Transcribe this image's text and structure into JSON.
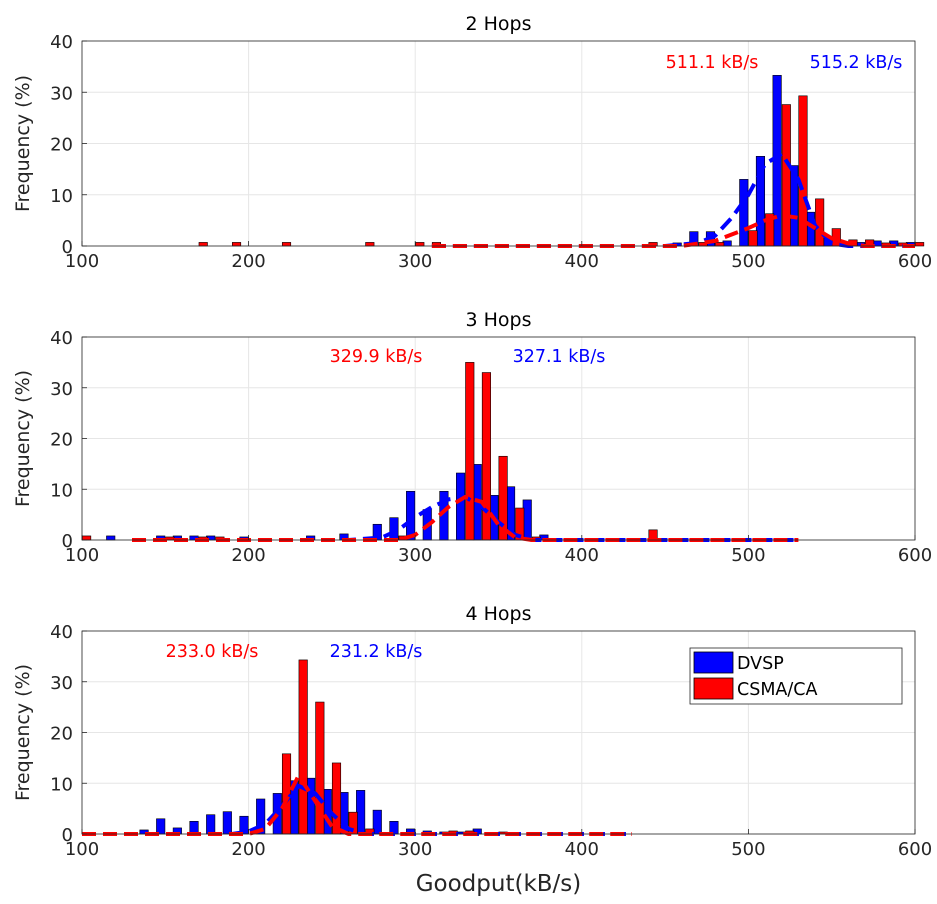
{
  "chart_data": [
    {
      "type": "bar",
      "title": "2 Hops",
      "xlabel": "",
      "ylabel": "Frequency (%)",
      "xlim": [
        100,
        600
      ],
      "ylim": [
        0,
        40
      ],
      "xticks": [
        100,
        200,
        300,
        400,
        500,
        600
      ],
      "yticks": [
        0,
        10,
        20,
        30,
        40
      ],
      "grid": true,
      "series": [
        {
          "color": "#0000ff",
          "bins": [
            [
              460,
              0.6
            ],
            [
              470,
              2.8
            ],
            [
              480,
              2.8
            ],
            [
              490,
              1.0
            ],
            [
              500,
              13.0
            ],
            [
              510,
              17.5
            ],
            [
              520,
              33.3
            ],
            [
              530,
              15.7
            ],
            [
              540,
              6.6
            ],
            [
              550,
              1.5
            ],
            [
              560,
              0.7
            ],
            [
              570,
              0.7
            ],
            [
              580,
              1.0
            ],
            [
              590,
              1.0
            ],
            [
              600,
              0.7
            ]
          ],
          "fit": [
            [
              310,
              0
            ],
            [
              450,
              0
            ],
            [
              470,
              0.6
            ],
            [
              480,
              2.0
            ],
            [
              490,
              5.5
            ],
            [
              500,
              10.0
            ],
            [
              510,
              16.0
            ],
            [
              520,
              18.0
            ],
            [
              530,
              13.0
            ],
            [
              540,
              4.0
            ],
            [
              550,
              0.5
            ],
            [
              560,
              0
            ],
            [
              600,
              0
            ]
          ]
        },
        {
          "color": "#ff0000",
          "bins": [
            [
              170,
              0.7
            ],
            [
              190,
              0.7
            ],
            [
              220,
              0.7
            ],
            [
              270,
              0.7
            ],
            [
              300,
              0.7
            ],
            [
              310,
              0.7
            ],
            [
              440,
              0.7
            ],
            [
              470,
              0.7
            ],
            [
              480,
              0.7
            ],
            [
              500,
              3.0
            ],
            [
              510,
              6.3
            ],
            [
              520,
              27.6
            ],
            [
              530,
              29.3
            ],
            [
              540,
              9.2
            ],
            [
              550,
              3.4
            ],
            [
              560,
              1.2
            ],
            [
              570,
              1.2
            ],
            [
              580,
              0.6
            ],
            [
              590,
              0.6
            ],
            [
              600,
              0.7
            ]
          ],
          "fit": [
            [
              310,
              0
            ],
            [
              460,
              0
            ],
            [
              480,
              1.0
            ],
            [
              500,
              3.5
            ],
            [
              510,
              5.0
            ],
            [
              520,
              6.0
            ],
            [
              530,
              5.5
            ],
            [
              540,
              3.5
            ],
            [
              550,
              1.5
            ],
            [
              560,
              0.5
            ],
            [
              570,
              0
            ],
            [
              600,
              0
            ]
          ]
        }
      ],
      "annotations": [
        {
          "text": "511.1 kB/s",
          "color": "#ff0000"
        },
        {
          "text": "515.2 kB/s",
          "color": "#0000ff"
        }
      ]
    },
    {
      "type": "bar",
      "title": "3 Hops",
      "xlabel": "",
      "ylabel": "Frequency (%)",
      "xlim": [
        100,
        600
      ],
      "ylim": [
        0,
        40
      ],
      "xticks": [
        100,
        200,
        300,
        400,
        500,
        600
      ],
      "yticks": [
        0,
        10,
        20,
        30,
        40
      ],
      "grid": true,
      "series": [
        {
          "color": "#0000ff",
          "bins": [
            [
              120,
              0.8
            ],
            [
              150,
              0.8
            ],
            [
              160,
              0.8
            ],
            [
              170,
              0.8
            ],
            [
              180,
              0.8
            ],
            [
              200,
              0.6
            ],
            [
              240,
              0.8
            ],
            [
              260,
              1.2
            ],
            [
              280,
              3.1
            ],
            [
              290,
              4.4
            ],
            [
              300,
              9.6
            ],
            [
              310,
              6.0
            ],
            [
              320,
              9.6
            ],
            [
              330,
              13.2
            ],
            [
              340,
              14.9
            ],
            [
              350,
              8.8
            ],
            [
              360,
              10.5
            ],
            [
              370,
              7.9
            ],
            [
              380,
              1.0
            ]
          ],
          "fit": [
            [
              130,
              0
            ],
            [
              260,
              0
            ],
            [
              280,
              0.5
            ],
            [
              290,
              2.0
            ],
            [
              300,
              4.5
            ],
            [
              310,
              6.5
            ],
            [
              320,
              8.0
            ],
            [
              330,
              8.5
            ],
            [
              340,
              6.5
            ],
            [
              350,
              3.5
            ],
            [
              360,
              1.0
            ],
            [
              370,
              0
            ],
            [
              530,
              0
            ]
          ]
        },
        {
          "color": "#ff0000",
          "bins": [
            [
              100,
              0.8
            ],
            [
              150,
              0.6
            ],
            [
              170,
              0.6
            ],
            [
              180,
              0.6
            ],
            [
              290,
              0.8
            ],
            [
              330,
              35.0
            ],
            [
              340,
              33.0
            ],
            [
              350,
              16.5
            ],
            [
              360,
              6.3
            ],
            [
              370,
              0.6
            ],
            [
              440,
              2.0
            ]
          ],
          "fit": [
            [
              130,
              0
            ],
            [
              290,
              0
            ],
            [
              300,
              1.0
            ],
            [
              310,
              3.5
            ],
            [
              320,
              6.5
            ],
            [
              330,
              8.5
            ],
            [
              340,
              7.5
            ],
            [
              350,
              3.0
            ],
            [
              360,
              0.5
            ],
            [
              370,
              0
            ],
            [
              530,
              0
            ]
          ]
        }
      ],
      "annotations": [
        {
          "text": "329.9 kB/s",
          "color": "#ff0000"
        },
        {
          "text": "327.1 kB/s",
          "color": "#0000ff"
        }
      ]
    },
    {
      "type": "bar",
      "title": "4 Hops",
      "xlabel": "Goodput(kB/s)",
      "ylabel": "Frequency (%)",
      "xlim": [
        100,
        600
      ],
      "ylim": [
        0,
        40
      ],
      "xticks": [
        100,
        200,
        300,
        400,
        500,
        600
      ],
      "yticks": [
        0,
        10,
        20,
        30,
        40
      ],
      "grid": true,
      "series": [
        {
          "name": "DVSP",
          "color": "#0000ff",
          "bins": [
            [
              140,
              0.8
            ],
            [
              150,
              3.0
            ],
            [
              160,
              1.2
            ],
            [
              170,
              2.5
            ],
            [
              180,
              3.8
            ],
            [
              190,
              4.4
            ],
            [
              200,
              3.5
            ],
            [
              210,
              6.9
            ],
            [
              220,
              8.0
            ],
            [
              230,
              10.5
            ],
            [
              240,
              11.0
            ],
            [
              250,
              8.8
            ],
            [
              260,
              8.2
            ],
            [
              270,
              8.6
            ],
            [
              280,
              4.7
            ],
            [
              290,
              2.5
            ],
            [
              300,
              1.0
            ],
            [
              310,
              0.6
            ],
            [
              320,
              0.4
            ],
            [
              330,
              0.4
            ],
            [
              340,
              1.0
            ]
          ],
          "fit": [
            [
              100,
              0
            ],
            [
              190,
              0
            ],
            [
              200,
              0.5
            ],
            [
              210,
              2.0
            ],
            [
              220,
              5.5
            ],
            [
              230,
              9.5
            ],
            [
              240,
              8.0
            ],
            [
              250,
              4.0
            ],
            [
              260,
              1.0
            ],
            [
              270,
              0
            ],
            [
              430,
              0
            ]
          ]
        },
        {
          "name": "CSMA/CA",
          "color": "#ff0000",
          "bins": [
            [
              220,
              15.8
            ],
            [
              230,
              34.3
            ],
            [
              240,
              26.0
            ],
            [
              250,
              14.0
            ],
            [
              260,
              4.3
            ],
            [
              270,
              1.0
            ],
            [
              320,
              0.6
            ],
            [
              330,
              0.6
            ],
            [
              350,
              0.4
            ]
          ],
          "fit": [
            [
              100,
              0
            ],
            [
              200,
              0
            ],
            [
              210,
              1.0
            ],
            [
              220,
              5.0
            ],
            [
              230,
              11.5
            ],
            [
              240,
              6.5
            ],
            [
              250,
              1.5
            ],
            [
              260,
              0
            ],
            [
              430,
              0
            ]
          ]
        }
      ],
      "annotations": [
        {
          "text": "233.0 kB/s",
          "color": "#ff0000"
        },
        {
          "text": "231.2 kB/s",
          "color": "#0000ff"
        }
      ],
      "legend": "top-right"
    }
  ]
}
